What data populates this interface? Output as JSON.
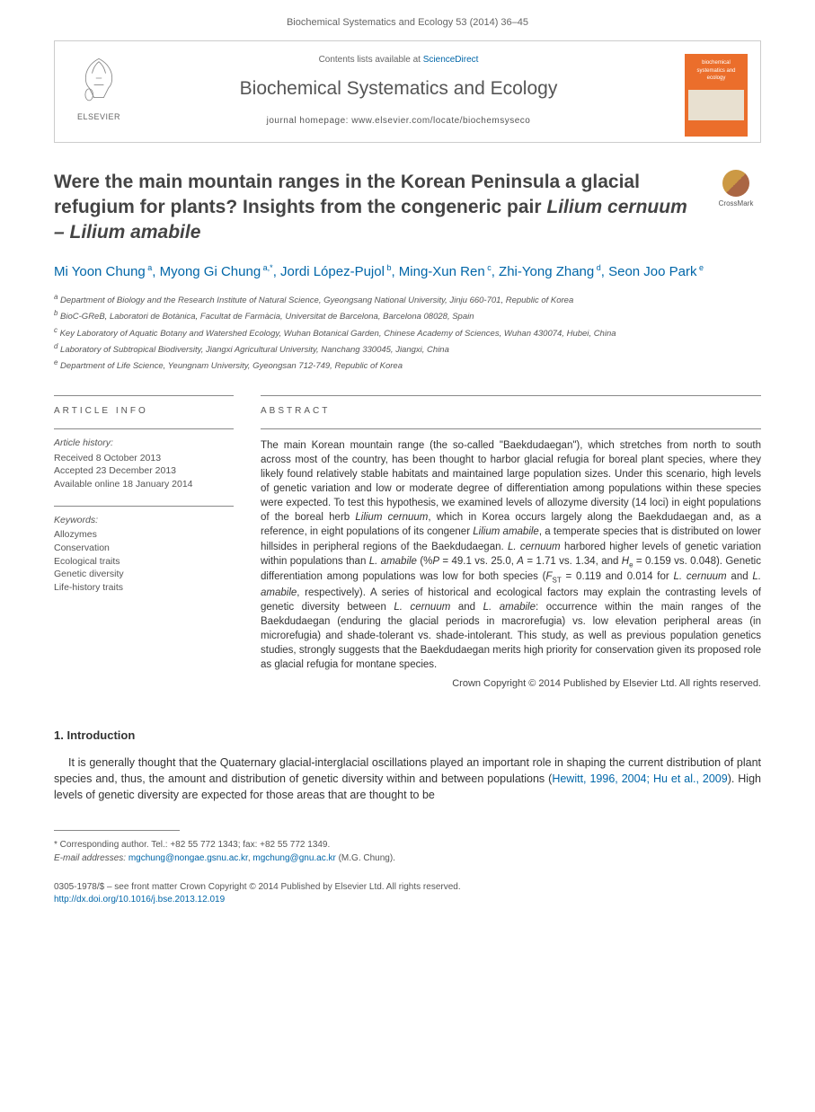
{
  "journal_ref": "Biochemical Systematics and Ecology 53 (2014) 36–45",
  "header": {
    "contents_prefix": "Contents lists available at ",
    "sciencedirect": "ScienceDirect",
    "journal_name": "Biochemical Systematics and Ecology",
    "homepage_prefix": "journal homepage: ",
    "homepage_url": "www.elsevier.com/locate/biochemsyseco",
    "elsevier_label": "ELSEVIER",
    "cover_text": "biochemical systematics and ecology"
  },
  "crossmark": "CrossMark",
  "title_part1": "Were the main mountain ranges in the Korean Peninsula a glacial refugium for plants? Insights from the congeneric pair ",
  "title_italic": "Lilium cernuum – Lilium amabile",
  "authors": [
    {
      "name": "Mi Yoon Chung",
      "sup": "a"
    },
    {
      "name": "Myong Gi Chung",
      "sup": "a,*"
    },
    {
      "name": "Jordi López-Pujol",
      "sup": "b"
    },
    {
      "name": "Ming-Xun Ren",
      "sup": "c"
    },
    {
      "name": "Zhi-Yong Zhang",
      "sup": "d"
    },
    {
      "name": "Seon Joo Park",
      "sup": "e"
    }
  ],
  "affiliations": [
    {
      "sup": "a",
      "text": "Department of Biology and the Research Institute of Natural Science, Gyeongsang National University, Jinju 660-701, Republic of Korea"
    },
    {
      "sup": "b",
      "text": "BioC-GReB, Laboratori de Botànica, Facultat de Farmàcia, Universitat de Barcelona, Barcelona 08028, Spain"
    },
    {
      "sup": "c",
      "text": "Key Laboratory of Aquatic Botany and Watershed Ecology, Wuhan Botanical Garden, Chinese Academy of Sciences, Wuhan 430074, Hubei, China"
    },
    {
      "sup": "d",
      "text": "Laboratory of Subtropical Biodiversity, Jiangxi Agricultural University, Nanchang 330045, Jiangxi, China"
    },
    {
      "sup": "e",
      "text": "Department of Life Science, Yeungnam University, Gyeongsan 712-749, Republic of Korea"
    }
  ],
  "article_info": {
    "heading": "ARTICLE INFO",
    "history_label": "Article history:",
    "history": [
      "Received 8 October 2013",
      "Accepted 23 December 2013",
      "Available online 18 January 2014"
    ],
    "keywords_label": "Keywords:",
    "keywords": [
      "Allozymes",
      "Conservation",
      "Ecological traits",
      "Genetic diversity",
      "Life-history traits"
    ]
  },
  "abstract": {
    "heading": "ABSTRACT",
    "text": "The main Korean mountain range (the so-called \"Baekdudaegan\"), which stretches from north to south across most of the country, has been thought to harbor glacial refugia for boreal plant species, where they likely found relatively stable habitats and maintained large population sizes. Under this scenario, high levels of genetic variation and low or moderate degree of differentiation among populations within these species were expected. To test this hypothesis, we examined levels of allozyme diversity (14 loci) in eight populations of the boreal herb Lilium cernuum, which in Korea occurs largely along the Baekdudaegan and, as a reference, in eight populations of its congener Lilium amabile, a temperate species that is distributed on lower hillsides in peripheral regions of the Baekdudaegan. L. cernuum harbored higher levels of genetic variation within populations than L. amabile (%P = 49.1 vs. 25.0, A = 1.71 vs. 1.34, and He = 0.159 vs. 0.048). Genetic differentiation among populations was low for both species (FST = 0.119 and 0.014 for L. cernuum and L. amabile, respectively). A series of historical and ecological factors may explain the contrasting levels of genetic diversity between L. cernuum and L. amabile: occurrence within the main ranges of the Baekdudaegan (enduring the glacial periods in macrorefugia) vs. low elevation peripheral areas (in microrefugia) and shade-tolerant vs. shade-intolerant. This study, as well as previous population genetics studies, strongly suggests that the Baekdudaegan merits high priority for conservation given its proposed role as glacial refugia for montane species.",
    "copyright": "Crown Copyright © 2014 Published by Elsevier Ltd. All rights reserved."
  },
  "body": {
    "section_head": "1. Introduction",
    "para1_part1": "It is generally thought that the Quaternary glacial-interglacial oscillations played an important role in shaping the current distribution of plant species and, thus, the amount and distribution of genetic diversity within and between populations (",
    "para1_cite": "Hewitt, 1996, 2004; Hu et al., 2009",
    "para1_part2": "). High levels of genetic diversity are expected for those areas that are thought to be"
  },
  "footnotes": {
    "corr": "* Corresponding author. Tel.: +82 55 772 1343; fax: +82 55 772 1349.",
    "email_label": "E-mail addresses: ",
    "email1": "mgchung@nongae.gsnu.ac.kr",
    "email_sep": ", ",
    "email2": "mgchung@gnu.ac.kr",
    "email_suffix": " (M.G. Chung)."
  },
  "bottom": {
    "line1": "0305-1978/$ – see front matter Crown Copyright © 2014 Published by Elsevier Ltd. All rights reserved.",
    "doi": "http://dx.doi.org/10.1016/j.bse.2013.12.019"
  }
}
